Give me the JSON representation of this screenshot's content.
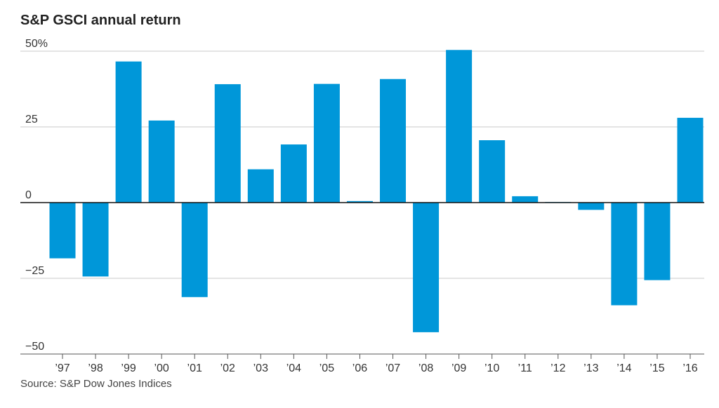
{
  "chart_data": {
    "type": "bar",
    "title": "S&P GSCI annual return",
    "xlabel": "",
    "ylabel": "",
    "ylim": [
      -50,
      50
    ],
    "y_ticks": [
      {
        "value": 50,
        "label": "50%"
      },
      {
        "value": 25,
        "label": "25"
      },
      {
        "value": 0,
        "label": "0"
      },
      {
        "value": -25,
        "label": "−25"
      },
      {
        "value": -50,
        "label": "−50"
      }
    ],
    "categories": [
      "’97",
      "’98",
      "’99",
      "’00",
      "’01",
      "’02",
      "’03",
      "’04",
      "’05",
      "’06",
      "’07",
      "’08",
      "’09",
      "’10",
      "’11",
      "’12",
      "’13",
      "’14",
      "’15",
      "’16"
    ],
    "values": [
      -18.4,
      -24.4,
      46.6,
      27.1,
      -31.2,
      39.1,
      11.0,
      19.2,
      39.2,
      0.5,
      40.8,
      -42.8,
      50.4,
      20.6,
      2.1,
      0.2,
      -2.4,
      -33.9,
      -25.6,
      28.0
    ],
    "bar_color": "#0097d9",
    "grid": true,
    "source": "Source: S&P Dow Jones Indices"
  }
}
